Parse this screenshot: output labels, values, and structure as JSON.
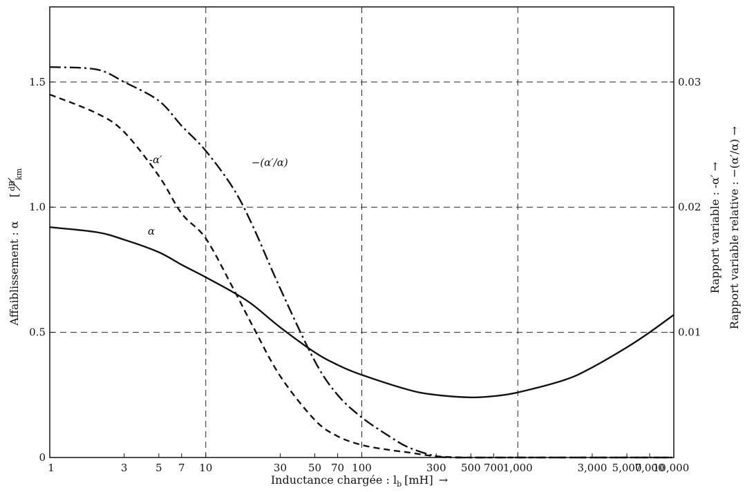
{
  "chart_data": {
    "type": "line",
    "title": "",
    "x_axis": {
      "label": "Inductance chargée : l",
      "label_sub": "b",
      "label_unit": "[mH]",
      "label_arrow": "→",
      "scale": "log",
      "range": [
        1,
        10000
      ],
      "ticks": [
        {
          "value": 1,
          "label": "1"
        },
        {
          "value": 3,
          "label": "3"
        },
        {
          "value": 5,
          "label": "5"
        },
        {
          "value": 7,
          "label": "7"
        },
        {
          "value": 10,
          "label": "10"
        },
        {
          "value": 30,
          "label": "30"
        },
        {
          "value": 50,
          "label": "50"
        },
        {
          "value": 70,
          "label": "70"
        },
        {
          "value": 100,
          "label": "100"
        },
        {
          "value": 300,
          "label": "300"
        },
        {
          "value": 500,
          "label": "500"
        },
        {
          "value": 700,
          "label": "700"
        },
        {
          "value": 1000,
          "label": "1,000"
        },
        {
          "value": 3000,
          "label": "3,000"
        },
        {
          "value": 5000,
          "label": "5,000"
        },
        {
          "value": 7000,
          "label": "7,000"
        },
        {
          "value": 10000,
          "label": "10,000"
        }
      ],
      "gridlines": [
        10,
        100,
        1000
      ]
    },
    "y_axis_left": {
      "label": "Affaiblissement : α",
      "label_unit_num": "dB",
      "label_unit_den": "km",
      "range": [
        0,
        1.8
      ],
      "ticks": [
        {
          "value": 0,
          "label": "0"
        },
        {
          "value": 0.5,
          "label": "0.5"
        },
        {
          "value": 1.0,
          "label": "1.0"
        },
        {
          "value": 1.5,
          "label": "1.5"
        }
      ],
      "gridlines": [
        0.5,
        1.0,
        1.5
      ]
    },
    "y_axis_right": {
      "label_1": "Rapport variable : -α′ →",
      "label_2": "Rapport variable relative : −(α′/α) →",
      "range": [
        0,
        0.036
      ],
      "ticks": [
        {
          "value": 0.01,
          "label": "0.01"
        },
        {
          "value": 0.02,
          "label": "0.02"
        },
        {
          "value": 0.03,
          "label": "0.03"
        }
      ]
    },
    "series": [
      {
        "name": "α",
        "style": "solid",
        "axis": "left",
        "x": [
          1,
          2,
          3,
          5,
          7,
          10,
          15,
          20,
          30,
          50,
          70,
          100,
          200,
          300,
          500,
          700,
          1000,
          2000,
          3000,
          5000,
          7000,
          10000
        ],
        "y": [
          0.92,
          0.9,
          0.87,
          0.82,
          0.77,
          0.72,
          0.66,
          0.61,
          0.52,
          0.42,
          0.37,
          0.33,
          0.27,
          0.25,
          0.24,
          0.245,
          0.26,
          0.31,
          0.36,
          0.44,
          0.5,
          0.57
        ]
      },
      {
        "name": "-α′",
        "style": "dashed",
        "axis": "right",
        "x": [
          1,
          2,
          3,
          5,
          7,
          10,
          15,
          20,
          30,
          50,
          70,
          100,
          150,
          200,
          300,
          500,
          1000,
          10000
        ],
        "y": [
          0.029,
          0.0275,
          0.026,
          0.0225,
          0.0195,
          0.0175,
          0.0135,
          0.0105,
          0.0065,
          0.003,
          0.0017,
          0.001,
          0.0006,
          0.0004,
          0.0001,
          0.0,
          0.0,
          0.0
        ]
      },
      {
        "name": "−(α′/α)",
        "style": "dashdot",
        "axis": "right",
        "x": [
          1,
          2,
          3,
          5,
          7,
          10,
          15,
          20,
          30,
          50,
          70,
          100,
          150,
          200,
          300,
          400,
          500,
          1000,
          10000
        ],
        "y": [
          0.0312,
          0.031,
          0.03,
          0.0285,
          0.0265,
          0.0245,
          0.0215,
          0.0185,
          0.0135,
          0.0077,
          0.005,
          0.0032,
          0.0017,
          0.0008,
          0.0001,
          0.0,
          0.0,
          0.0,
          0.0
        ]
      }
    ],
    "curve_labels": [
      {
        "series": "α",
        "text": "α"
      },
      {
        "series": "-α′",
        "text": "-α′"
      },
      {
        "series": "−(α′/α)",
        "text": "−(α′/α)"
      }
    ],
    "grid": true,
    "legend": "none"
  }
}
